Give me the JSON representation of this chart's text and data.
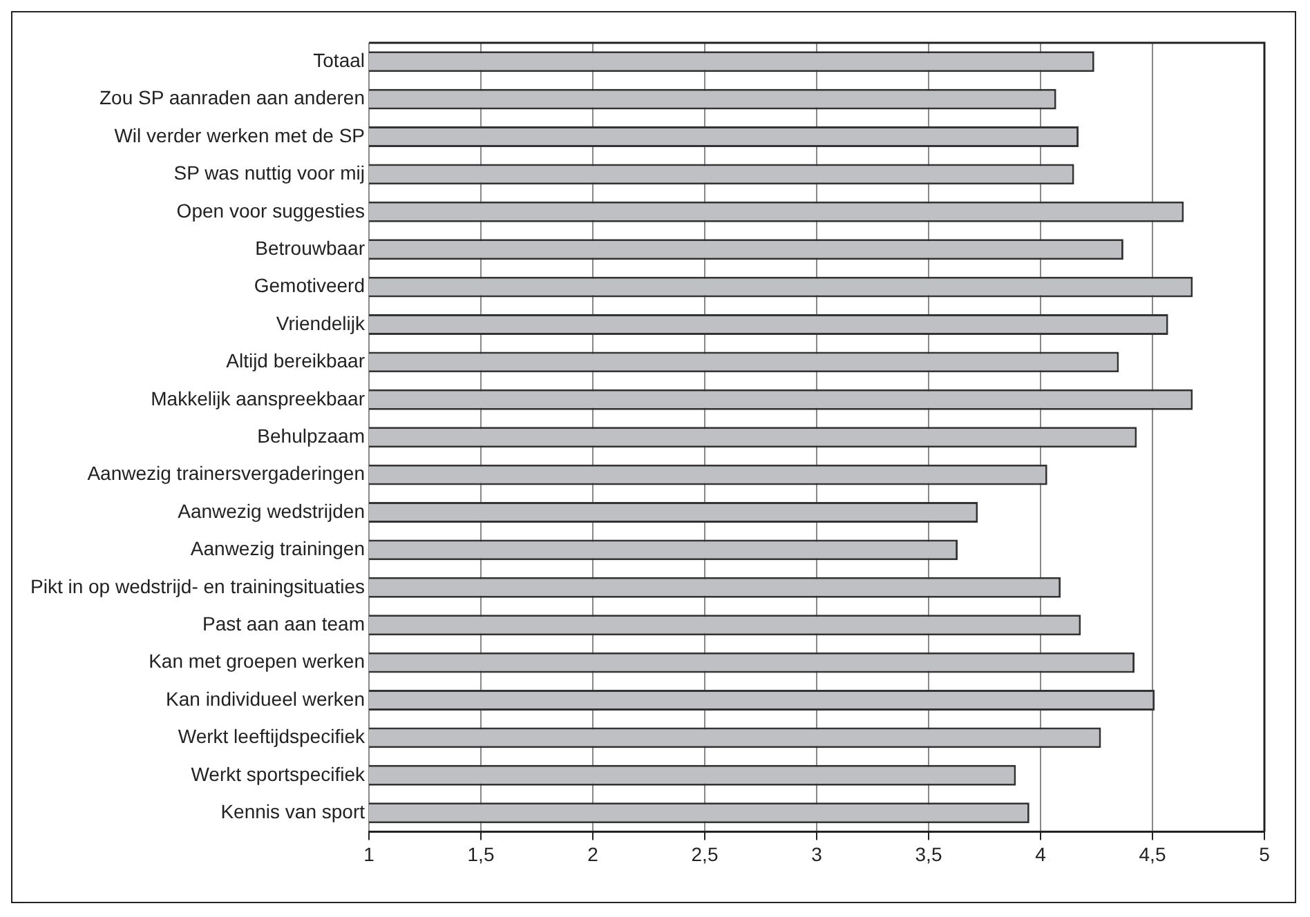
{
  "chart_data": {
    "type": "bar",
    "orientation": "horizontal",
    "categories": [
      "Totaal",
      "Zou SP aanraden aan anderen",
      "Wil verder werken met de SP",
      "SP was nuttig voor mij",
      "Open voor suggesties",
      "Betrouwbaar",
      "Gemotiveerd",
      "Vriendelijk",
      "Altijd bereikbaar",
      "Makkelijk aanspreekbaar",
      "Behulpzaam",
      "Aanwezig trainersvergaderingen",
      "Aanwezig wedstrijden",
      "Aanwezig trainingen",
      "Pikt in op wedstrijd- en trainingsituaties",
      "Past aan aan team",
      "Kan met groepen werken",
      "Kan individueel werken",
      "Werkt leeftijdspecifiek",
      "Werkt sportspecifiek",
      "Kennis van sport"
    ],
    "values": [
      4.24,
      4.07,
      4.17,
      4.15,
      4.64,
      4.37,
      4.68,
      4.57,
      4.35,
      4.68,
      4.43,
      4.03,
      3.72,
      3.63,
      4.09,
      4.18,
      4.42,
      4.51,
      4.27,
      3.89,
      3.95
    ],
    "color": "#bfc0c4",
    "xlim": [
      1,
      5
    ],
    "xticks": [
      1,
      {
        "value": 1.5,
        "label": "1,5"
      },
      2,
      {
        "value": 2.5,
        "label": "2,5"
      },
      3,
      {
        "value": 3.5,
        "label": "3,5"
      },
      4,
      {
        "value": 4.5,
        "label": "4,5"
      },
      5
    ],
    "grid": "x",
    "legend": false
  }
}
